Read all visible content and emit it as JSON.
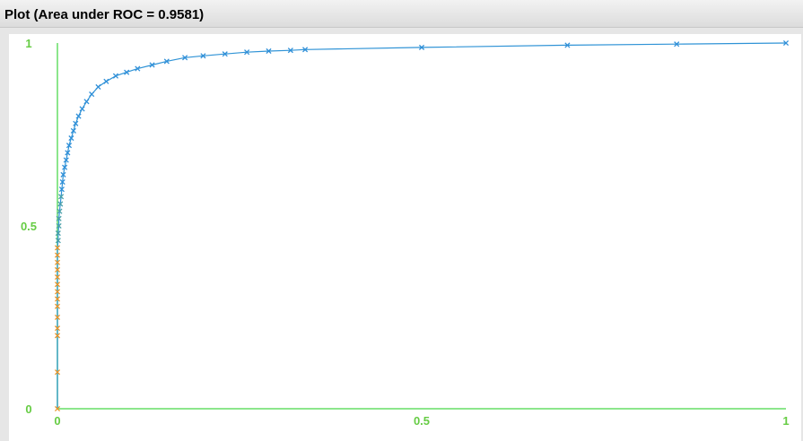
{
  "window": {
    "title": "Plot (Area under ROC = 0.9581)"
  },
  "colors": {
    "axis": "#66dd66",
    "tick_label": "#66cc44",
    "curve_line": "#2f93d6",
    "marker_high": "#2f8fd8",
    "marker_mid": "#4aa0a8",
    "marker_low": "#e8962a",
    "background": "#ffffff"
  },
  "chart_data": {
    "type": "line",
    "title": "",
    "xlabel": "",
    "ylabel": "",
    "xlim": [
      0,
      1
    ],
    "ylim": [
      0,
      1
    ],
    "x_ticks": [
      {
        "value": 0,
        "label": "0"
      },
      {
        "value": 0.5,
        "label": "0.5"
      },
      {
        "value": 1,
        "label": "1"
      }
    ],
    "y_ticks": [
      {
        "value": 0,
        "label": "0"
      },
      {
        "value": 0.5,
        "label": "0.5"
      },
      {
        "value": 1,
        "label": "1"
      }
    ],
    "grid": false,
    "marker": "x",
    "series": [
      {
        "points": [
          [
            0.0,
            0.0
          ],
          [
            0.0,
            0.1
          ],
          [
            0.0,
            0.2
          ],
          [
            0.0,
            0.22
          ],
          [
            0.0,
            0.25
          ],
          [
            0.0,
            0.28
          ],
          [
            0.0,
            0.3
          ],
          [
            0.0,
            0.32
          ],
          [
            0.0,
            0.34
          ],
          [
            0.0,
            0.36
          ],
          [
            0.0,
            0.38
          ],
          [
            0.0,
            0.4
          ],
          [
            0.0,
            0.42
          ],
          [
            0.0,
            0.44
          ],
          [
            0.001,
            0.46
          ],
          [
            0.001,
            0.48
          ],
          [
            0.002,
            0.5
          ],
          [
            0.002,
            0.52
          ],
          [
            0.003,
            0.54
          ],
          [
            0.004,
            0.56
          ],
          [
            0.005,
            0.58
          ],
          [
            0.006,
            0.6
          ],
          [
            0.007,
            0.62
          ],
          [
            0.008,
            0.64
          ],
          [
            0.01,
            0.66
          ],
          [
            0.012,
            0.68
          ],
          [
            0.014,
            0.7
          ],
          [
            0.016,
            0.72
          ],
          [
            0.019,
            0.74
          ],
          [
            0.022,
            0.76
          ],
          [
            0.025,
            0.78
          ],
          [
            0.029,
            0.8
          ],
          [
            0.034,
            0.82
          ],
          [
            0.04,
            0.84
          ],
          [
            0.047,
            0.86
          ],
          [
            0.056,
            0.88
          ],
          [
            0.067,
            0.895
          ],
          [
            0.08,
            0.91
          ],
          [
            0.095,
            0.92
          ],
          [
            0.11,
            0.93
          ],
          [
            0.13,
            0.94
          ],
          [
            0.15,
            0.95
          ],
          [
            0.175,
            0.96
          ],
          [
            0.2,
            0.965
          ],
          [
            0.23,
            0.97
          ],
          [
            0.26,
            0.975
          ],
          [
            0.29,
            0.978
          ],
          [
            0.32,
            0.98
          ],
          [
            0.34,
            0.982
          ],
          [
            0.5,
            0.988
          ],
          [
            0.7,
            0.994
          ],
          [
            0.85,
            0.997
          ],
          [
            1.0,
            1.0
          ]
        ]
      }
    ]
  }
}
